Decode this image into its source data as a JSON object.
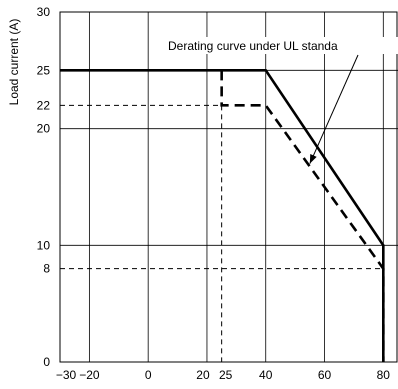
{
  "chart_data": {
    "type": "line",
    "ylabel": "Load current (A)",
    "xlabel": "",
    "xlim": [
      -30,
      85
    ],
    "ylim": [
      0,
      30
    ],
    "x_ticks": [
      -30,
      -20,
      0,
      20,
      25,
      40,
      60,
      80
    ],
    "x_tick_labels": [
      "−30",
      "−20",
      "0",
      "20",
      "25",
      "40",
      "60",
      "80"
    ],
    "y_ticks": [
      0,
      8,
      10,
      20,
      22,
      25,
      30
    ],
    "y_tick_labels": [
      "0",
      "8",
      "10",
      "20",
      "22",
      "25",
      "30"
    ],
    "grid": true,
    "series": [
      {
        "style": "solid",
        "x": [
          -30,
          40,
          80,
          80
        ],
        "y": [
          25,
          25,
          10,
          0
        ]
      },
      {
        "style": "dashed",
        "x": [
          25,
          25,
          40,
          80,
          80
        ],
        "y": [
          25,
          22,
          22,
          8,
          0
        ]
      }
    ],
    "reference_lines": [
      {
        "from": [
          -30,
          22
        ],
        "to": [
          25,
          22
        ]
      },
      {
        "from": [
          25,
          22
        ],
        "to": [
          25,
          0
        ]
      },
      {
        "from": [
          -30,
          8
        ],
        "to": [
          80,
          8
        ]
      }
    ],
    "annotation": {
      "text": "Derating curve under UL standa",
      "points_to": [
        55,
        17
      ]
    }
  }
}
